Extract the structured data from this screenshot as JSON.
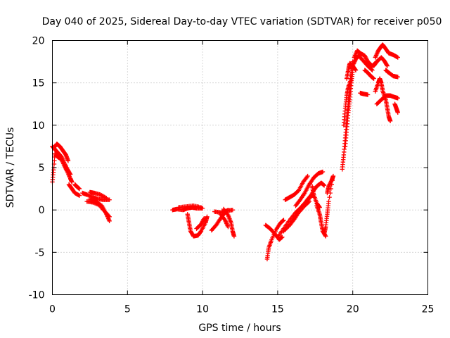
{
  "chart_data": {
    "type": "scatter",
    "title": "Day 040 of 2025, Sidereal Day-to-day VTEC variation (SDTVAR) for receiver p050",
    "xlabel": "GPS time / hours",
    "ylabel": "SDTVAR / TECUs",
    "xlim": [
      0,
      25
    ],
    "ylim": [
      -10,
      20
    ],
    "xticks": [
      "0",
      "5",
      "10",
      "15",
      "20",
      "25"
    ],
    "yticks": [
      "-10",
      "-5",
      "0",
      "5",
      "10",
      "15",
      "20"
    ],
    "grid": true,
    "marker": "+",
    "color": "#ff0000",
    "series": [
      {
        "tracks": [
          [
            [
              0.0,
              3.3
            ],
            [
              0.1,
              5.0
            ],
            [
              0.2,
              7.5
            ],
            [
              0.3,
              7.8
            ],
            [
              0.5,
              7.5
            ],
            [
              0.7,
              7.0
            ],
            [
              0.9,
              6.5
            ],
            [
              1.05,
              5.8
            ]
          ],
          [
            [
              0.0,
              7.5
            ],
            [
              0.15,
              7.2
            ],
            [
              0.35,
              6.8
            ],
            [
              0.6,
              6.3
            ],
            [
              0.8,
              5.5
            ],
            [
              1.0,
              4.8
            ],
            [
              1.2,
              4.2
            ]
          ],
          [
            [
              0.2,
              6.5
            ],
            [
              0.4,
              6.2
            ],
            [
              0.6,
              6.0
            ],
            [
              0.8,
              5.2
            ],
            [
              1.0,
              4.5
            ],
            [
              1.2,
              3.7
            ],
            [
              1.3,
              3.3
            ]
          ],
          [
            [
              1.1,
              3.0
            ],
            [
              1.3,
              2.5
            ],
            [
              1.5,
              2.0
            ],
            [
              1.8,
              1.7
            ]
          ],
          [
            [
              1.5,
              3.0
            ],
            [
              1.6,
              2.8
            ],
            [
              1.8,
              2.5
            ]
          ],
          [
            [
              2.0,
              2.0
            ],
            [
              2.3,
              1.8
            ],
            [
              2.7,
              1.5
            ],
            [
              3.0,
              1.3
            ],
            [
              3.4,
              1.2
            ],
            [
              3.8,
              1.2
            ]
          ],
          [
            [
              2.5,
              2.1
            ],
            [
              2.8,
              2.0
            ],
            [
              3.2,
              1.8
            ],
            [
              3.6,
              1.4
            ]
          ],
          [
            [
              2.5,
              1.3
            ],
            [
              2.9,
              1.0
            ],
            [
              3.3,
              0.5
            ],
            [
              3.6,
              -0.5
            ],
            [
              3.8,
              -1.3
            ]
          ],
          [
            [
              2.3,
              1.0
            ],
            [
              2.7,
              0.9
            ],
            [
              3.1,
              0.6
            ],
            [
              3.5,
              -0.2
            ],
            [
              3.8,
              -0.8
            ]
          ],
          [
            [
              8.0,
              0.0
            ],
            [
              8.3,
              0.1
            ],
            [
              8.7,
              0.0
            ],
            [
              9.0,
              0.2
            ],
            [
              9.3,
              0.3
            ],
            [
              9.6,
              0.2
            ],
            [
              10.0,
              0.2
            ]
          ],
          [
            [
              8.4,
              0.3
            ],
            [
              8.9,
              0.4
            ],
            [
              9.4,
              0.5
            ],
            [
              9.9,
              0.3
            ]
          ],
          [
            [
              9.0,
              -0.5
            ],
            [
              9.1,
              -1.5
            ],
            [
              9.2,
              -2.5
            ],
            [
              9.4,
              -3.1
            ],
            [
              9.7,
              -3.0
            ],
            [
              9.9,
              -2.5
            ],
            [
              10.2,
              -1.5
            ],
            [
              10.3,
              -0.8
            ]
          ],
          [
            [
              9.6,
              -2.2
            ],
            [
              9.9,
              -1.7
            ],
            [
              10.1,
              -1.0
            ]
          ],
          [
            [
              10.6,
              -2.4
            ],
            [
              10.9,
              -1.8
            ],
            [
              11.2,
              -1.0
            ],
            [
              11.5,
              -0.3
            ],
            [
              11.7,
              0.0
            ]
          ],
          [
            [
              10.8,
              -0.2
            ],
            [
              11.2,
              -0.3
            ],
            [
              11.6,
              -0.1
            ],
            [
              12.0,
              0.0
            ]
          ],
          [
            [
              11.4,
              0.1
            ],
            [
              11.7,
              -0.6
            ],
            [
              11.9,
              -1.5
            ],
            [
              12.0,
              -2.5
            ],
            [
              12.1,
              -3.1
            ]
          ],
          [
            [
              11.2,
              -0.5
            ],
            [
              11.5,
              -1.2
            ],
            [
              11.7,
              -2.0
            ]
          ],
          [
            [
              14.2,
              -1.8
            ],
            [
              14.5,
              -2.2
            ],
            [
              14.8,
              -2.8
            ],
            [
              15.1,
              -3.5
            ],
            [
              15.3,
              -3.2
            ]
          ],
          [
            [
              14.3,
              -5.8
            ],
            [
              14.4,
              -4.5
            ],
            [
              14.6,
              -3.5
            ],
            [
              14.9,
              -2.3
            ],
            [
              15.2,
              -1.5
            ],
            [
              15.4,
              -1.2
            ]
          ],
          [
            [
              15.0,
              -3.2
            ],
            [
              15.4,
              -2.2
            ],
            [
              15.8,
              -1.2
            ],
            [
              16.2,
              -0.3
            ],
            [
              16.5,
              0.2
            ],
            [
              16.8,
              0.8
            ],
            [
              17.1,
              1.5
            ],
            [
              17.4,
              1.8
            ]
          ],
          [
            [
              15.4,
              -2.5
            ],
            [
              15.8,
              -1.8
            ],
            [
              16.1,
              -1.1
            ],
            [
              16.4,
              -0.3
            ],
            [
              16.8,
              0.5
            ],
            [
              17.1,
              1.0
            ]
          ],
          [
            [
              15.5,
              1.2
            ],
            [
              15.8,
              1.5
            ],
            [
              16.1,
              1.8
            ],
            [
              16.4,
              2.3
            ],
            [
              16.7,
              3.3
            ],
            [
              17.0,
              4.0
            ]
          ],
          [
            [
              16.2,
              0.5
            ],
            [
              16.5,
              1.2
            ],
            [
              16.8,
              2.0
            ],
            [
              17.1,
              3.0
            ],
            [
              17.4,
              3.8
            ],
            [
              17.7,
              4.3
            ],
            [
              18.0,
              4.5
            ]
          ],
          [
            [
              17.0,
              1.0
            ],
            [
              17.3,
              2.0
            ],
            [
              17.6,
              2.8
            ],
            [
              17.9,
              3.2
            ],
            [
              18.1,
              2.9
            ]
          ],
          [
            [
              17.6,
              0.5
            ],
            [
              17.8,
              -0.5
            ],
            [
              17.9,
              -1.5
            ],
            [
              18.0,
              -2.5
            ],
            [
              18.2,
              -3.1
            ]
          ],
          [
            [
              17.3,
              2.8
            ],
            [
              17.4,
              1.8
            ],
            [
              17.6,
              0.8
            ],
            [
              17.8,
              0.3
            ]
          ],
          [
            [
              18.3,
              2.0
            ],
            [
              18.4,
              2.8
            ],
            [
              18.6,
              3.5
            ],
            [
              18.7,
              4.0
            ],
            [
              18.4,
              1.0
            ],
            [
              18.3,
              -0.5
            ],
            [
              18.2,
              -2.0
            ],
            [
              18.1,
              -2.8
            ]
          ],
          [
            [
              19.3,
              4.8
            ],
            [
              19.4,
              6.5
            ],
            [
              19.5,
              8.5
            ],
            [
              19.6,
              10.5
            ],
            [
              19.7,
              12.5
            ],
            [
              19.8,
              14.5
            ],
            [
              19.9,
              16.5
            ],
            [
              20.0,
              17.5
            ]
          ],
          [
            [
              19.5,
              7.5
            ],
            [
              19.6,
              9.5
            ],
            [
              19.7,
              11.5
            ],
            [
              19.8,
              13.0
            ],
            [
              19.9,
              15.0
            ],
            [
              20.0,
              16.5
            ]
          ],
          [
            [
              19.4,
              10.0
            ],
            [
              19.5,
              12.0
            ],
            [
              19.6,
              13.5
            ],
            [
              19.7,
              14.5
            ],
            [
              19.9,
              15.5
            ]
          ],
          [
            [
              19.6,
              15.5
            ],
            [
              19.7,
              16.5
            ],
            [
              19.8,
              17.3
            ],
            [
              20.0,
              17.0
            ],
            [
              20.2,
              16.5
            ]
          ],
          [
            [
              20.1,
              18.0
            ],
            [
              20.3,
              18.8
            ],
            [
              20.5,
              18.5
            ],
            [
              20.8,
              18.2
            ],
            [
              21.0,
              17.5
            ],
            [
              21.3,
              17.0
            ],
            [
              21.6,
              17.5
            ]
          ],
          [
            [
              20.0,
              17.0
            ],
            [
              20.2,
              17.8
            ],
            [
              20.4,
              18.2
            ],
            [
              20.7,
              17.6
            ],
            [
              21.0,
              17.0
            ],
            [
              21.3,
              16.5
            ]
          ],
          [
            [
              21.5,
              18.0
            ],
            [
              21.7,
              18.8
            ],
            [
              21.9,
              19.3
            ],
            [
              22.0,
              19.5
            ],
            [
              22.2,
              19.0
            ],
            [
              22.4,
              18.5
            ],
            [
              22.7,
              18.3
            ],
            [
              23.0,
              18.0
            ]
          ],
          [
            [
              21.4,
              17.0
            ],
            [
              21.6,
              17.5
            ],
            [
              21.9,
              18.0
            ],
            [
              22.1,
              17.6
            ],
            [
              22.3,
              17.0
            ]
          ],
          [
            [
              21.5,
              14.0
            ],
            [
              21.7,
              15.0
            ],
            [
              21.8,
              15.5
            ],
            [
              21.9,
              15.0
            ],
            [
              22.0,
              14.0
            ],
            [
              22.2,
              13.0
            ],
            [
              22.3,
              12.0
            ],
            [
              22.4,
              11.0
            ],
            [
              22.5,
              10.5
            ]
          ],
          [
            [
              21.6,
              12.5
            ],
            [
              21.9,
              13.0
            ],
            [
              22.2,
              13.5
            ],
            [
              22.5,
              13.5
            ],
            [
              22.8,
              13.3
            ],
            [
              23.0,
              13.2
            ]
          ],
          [
            [
              22.2,
              16.5
            ],
            [
              22.4,
              16.2
            ],
            [
              22.7,
              15.8
            ],
            [
              23.0,
              15.7
            ]
          ],
          [
            [
              22.8,
              12.5
            ],
            [
              22.9,
              12.0
            ],
            [
              23.0,
              11.5
            ]
          ],
          [
            [
              20.5,
              13.8
            ],
            [
              20.7,
              13.7
            ],
            [
              21.0,
              13.6
            ]
          ],
          [
            [
              20.8,
              16.5
            ],
            [
              21.0,
              16.2
            ],
            [
              21.2,
              15.8
            ],
            [
              21.4,
              15.5
            ]
          ]
        ]
      }
    ]
  }
}
